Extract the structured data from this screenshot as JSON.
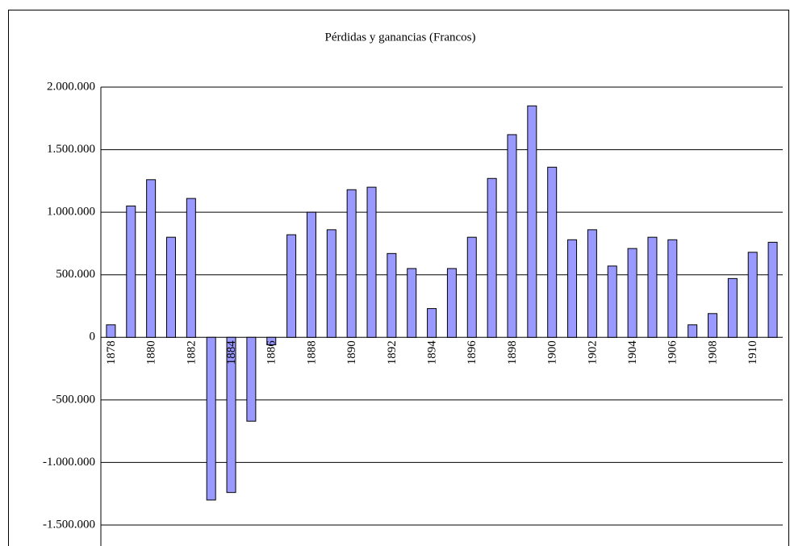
{
  "chart_data": {
    "type": "bar",
    "title": "Pérdidas y ganancias (Francos)",
    "categories": [
      "1878",
      null,
      "1880",
      null,
      "1882",
      null,
      "1884",
      null,
      "1886",
      null,
      "1888",
      null,
      "1890",
      null,
      "1892",
      null,
      "1894",
      null,
      "1896",
      null,
      "1898",
      null,
      "1900",
      null,
      "1902",
      null,
      "1904",
      null,
      "1906",
      null,
      "1908",
      null,
      "1910",
      null
    ],
    "values": [
      100000,
      1050000,
      1260000,
      800000,
      1110000,
      -1300000,
      -1240000,
      -670000,
      -60000,
      820000,
      1000000,
      860000,
      1180000,
      1200000,
      670000,
      550000,
      230000,
      550000,
      800000,
      1270000,
      1620000,
      1850000,
      1360000,
      780000,
      860000,
      570000,
      710000,
      800000,
      780000,
      100000,
      190000,
      470000,
      680000,
      760000
    ],
    "color": "#9999ff",
    "ylim": [
      -1500000,
      2000000
    ],
    "yticks": [
      {
        "value": -1500000,
        "label": "-1.500.000"
      },
      {
        "value": -1000000,
        "label": "-1.000.000"
      },
      {
        "value": -500000,
        "label": "-500.000"
      },
      0,
      {
        "value": 500000,
        "label": "500.000"
      },
      {
        "value": 1000000,
        "label": "1.000.000"
      },
      {
        "value": 1500000,
        "label": "1.500.000"
      },
      {
        "value": 2000000,
        "label": "2.000.000"
      }
    ],
    "grid": true
  }
}
